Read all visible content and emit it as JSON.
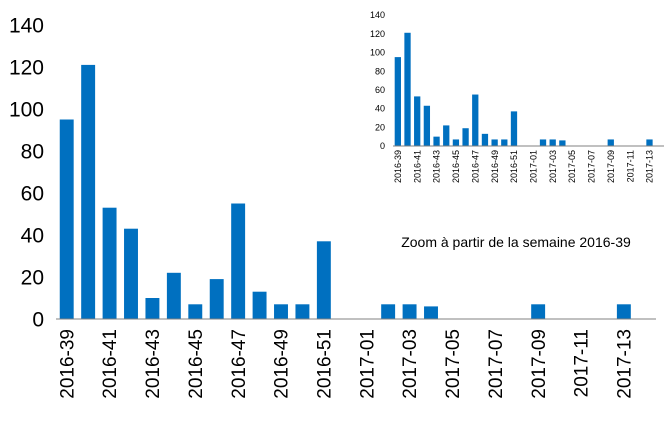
{
  "chart_data": [
    {
      "id": "main",
      "type": "bar",
      "title": "",
      "xlabel": "",
      "ylabel": "",
      "ylim": [
        0,
        140
      ],
      "yticks": [
        0,
        20,
        40,
        60,
        80,
        100,
        120,
        140
      ],
      "grid": false,
      "bar_color": "#0070C0",
      "categories": [
        "2016-39",
        "2016-40",
        "2016-41",
        "2016-42",
        "2016-43",
        "2016-44",
        "2016-45",
        "2016-46",
        "2016-47",
        "2016-48",
        "2016-49",
        "2016-50",
        "2016-51",
        "2016-52",
        "2017-01",
        "2017-02",
        "2017-03",
        "2017-04",
        "2017-05",
        "2017-06",
        "2017-07",
        "2017-08",
        "2017-09",
        "2017-10",
        "2017-11",
        "2017-12",
        "2017-13",
        "2017-14"
      ],
      "values": [
        95,
        121,
        53,
        43,
        10,
        22,
        7,
        19,
        55,
        13,
        7,
        7,
        37,
        0,
        0,
        7,
        7,
        6,
        0,
        0,
        0,
        0,
        7,
        0,
        0,
        0,
        7,
        0
      ],
      "tick_labels_shown": [
        "2016-39",
        "2016-41",
        "2016-43",
        "2016-45",
        "2016-47",
        "2016-49",
        "2016-51",
        "2017-01",
        "2017-03",
        "2017-05",
        "2017-07",
        "2017-09",
        "2017-11",
        "2017-13"
      ]
    },
    {
      "id": "inset",
      "type": "bar",
      "title": "Zoom à partir de la semaine 2016-39",
      "xlabel": "",
      "ylabel": "",
      "ylim": [
        0,
        140
      ],
      "yticks": [
        0,
        20,
        40,
        60,
        80,
        100,
        120,
        140
      ],
      "grid": false,
      "bar_color": "#0070C0",
      "categories": [
        "2016-39",
        "2016-40",
        "2016-41",
        "2016-42",
        "2016-43",
        "2016-44",
        "2016-45",
        "2016-46",
        "2016-47",
        "2016-48",
        "2016-49",
        "2016-50",
        "2016-51",
        "2016-52",
        "2017-01",
        "2017-02",
        "2017-03",
        "2017-04",
        "2017-05",
        "2017-06",
        "2017-07",
        "2017-08",
        "2017-09",
        "2017-10",
        "2017-11",
        "2017-12",
        "2017-13",
        "2017-14"
      ],
      "values": [
        95,
        121,
        53,
        43,
        10,
        22,
        7,
        19,
        55,
        13,
        7,
        7,
        37,
        0,
        0,
        7,
        7,
        6,
        0,
        0,
        0,
        0,
        7,
        0,
        0,
        0,
        7,
        0
      ],
      "tick_labels_shown": [
        "2016-39",
        "2016-41",
        "2016-43",
        "2016-45",
        "2016-47",
        "2016-49",
        "2016-51",
        "2017-01",
        "2017-03",
        "2017-05",
        "2017-07",
        "2017-09",
        "2017-11",
        "2017-13"
      ]
    }
  ]
}
